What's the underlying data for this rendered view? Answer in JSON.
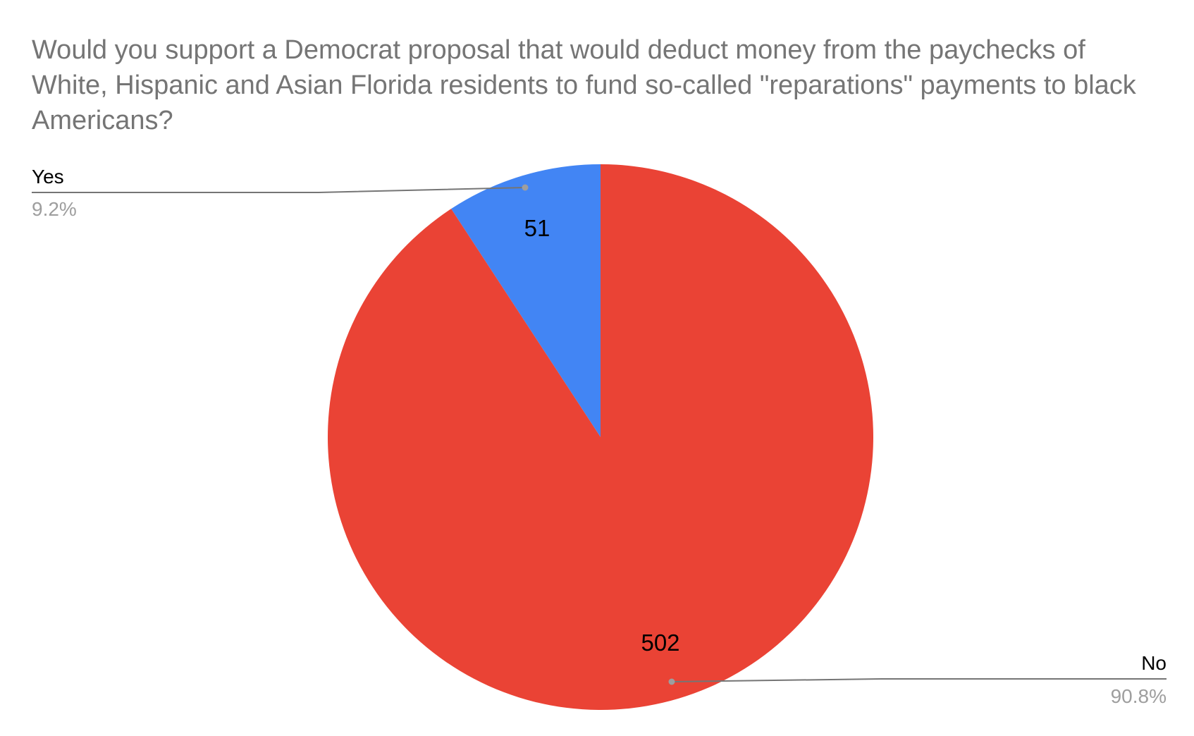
{
  "chart_data": {
    "type": "pie",
    "title": "Would you support a Democrat proposal that would deduct money from the paychecks of White, Hispanic and Asian Florida residents to fund so-called \"reparations\" payments to black Americans?",
    "slices": [
      {
        "label": "Yes",
        "value": 51,
        "value_label": "51",
        "percent_label": "9.2%",
        "color": "#4285f4"
      },
      {
        "label": "No",
        "value": 502,
        "value_label": "502",
        "percent_label": "90.8%",
        "color": "#ea4335"
      }
    ],
    "start_angle_deg": 0,
    "direction": "counterclockwise",
    "legend": "callout"
  },
  "colors": {
    "title": "#757575",
    "leader_line": "#757575",
    "percent_text": "#9e9e9e",
    "label_text": "#000000"
  }
}
